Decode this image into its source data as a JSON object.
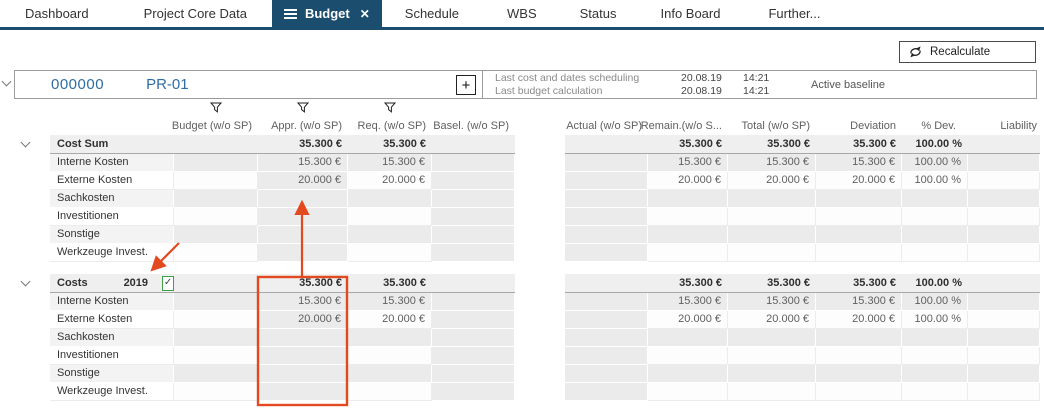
{
  "tabbar": {
    "tabs": [
      {
        "label": "Dashboard",
        "active": false
      },
      {
        "label": "Project Core Data",
        "active": false
      },
      {
        "label": "Budget",
        "active": true
      },
      {
        "label": "Schedule",
        "active": false
      },
      {
        "label": "WBS",
        "active": false
      },
      {
        "label": "Status",
        "active": false
      },
      {
        "label": "Info Board",
        "active": false
      },
      {
        "label": "Further...",
        "active": false
      }
    ]
  },
  "toolbar": {
    "recalculate_label": "Recalculate"
  },
  "project": {
    "number": "000000",
    "code": "PR-01",
    "add_button": "+",
    "info_rows": [
      {
        "label": "Last cost and dates scheduling",
        "date": "20.08.19",
        "time": "14:21"
      },
      {
        "label": "Last budget calculation",
        "date": "20.08.19",
        "time": "14:21"
      }
    ],
    "baseline": "Active baseline"
  },
  "columns": {
    "left": [
      "Budget (w/o SP)",
      "Appr. (w/o SP)",
      "Req. (w/o SP)",
      "Basel. (w/o SP)"
    ],
    "right": [
      "Actual (w/o SP)",
      "Remain.(w/o S...",
      "Total (w/o SP)",
      "Deviation",
      "% Dev.",
      "Liability"
    ],
    "filtered": [
      "Budget (w/o SP)",
      "Appr. (w/o SP)",
      "Req. (w/o SP)"
    ]
  },
  "sections": [
    {
      "title": "Cost Sum",
      "year": "",
      "checkbox": false,
      "checkbox_mark": "",
      "totals": {
        "budget": "",
        "appr": "35.300 €",
        "req": "35.300 €",
        "basel": "",
        "actual": "",
        "remain": "35.300 €",
        "total": "35.300 €",
        "deviation": "35.300 €",
        "pdev": "100.00 %",
        "liability": ""
      },
      "rows": [
        {
          "label": "Interne Kosten",
          "budget": "",
          "appr": "15.300 €",
          "req": "15.300 €",
          "basel": "",
          "actual": "",
          "remain": "15.300 €",
          "total": "15.300 €",
          "deviation": "15.300 €",
          "pdev": "100.00 %",
          "liability": ""
        },
        {
          "label": "Externe Kosten",
          "budget": "",
          "appr": "20.000 €",
          "req": "20.000 €",
          "basel": "",
          "actual": "",
          "remain": "20.000 €",
          "total": "20.000 €",
          "deviation": "20.000 €",
          "pdev": "100.00 %",
          "liability": ""
        },
        {
          "label": "Sachkosten"
        },
        {
          "label": "Investitionen"
        },
        {
          "label": "Sonstige"
        },
        {
          "label": "Werkzeuge Invest."
        }
      ]
    },
    {
      "title": "Costs",
      "year": "2019",
      "checkbox": true,
      "checkbox_mark": "✓",
      "totals": {
        "budget": "",
        "appr": "35.300 €",
        "req": "35.300 €",
        "basel": "",
        "actual": "",
        "remain": "35.300 €",
        "total": "35.300 €",
        "deviation": "35.300 €",
        "pdev": "100.00 %",
        "liability": ""
      },
      "rows": [
        {
          "label": "Interne Kosten",
          "budget": "",
          "appr": "15.300 €",
          "req": "15.300 €",
          "basel": "",
          "actual": "",
          "remain": "15.300 €",
          "total": "15.300 €",
          "deviation": "15.300 €",
          "pdev": "100.00 %",
          "liability": ""
        },
        {
          "label": "Externe Kosten",
          "budget": "",
          "appr": "20.000 €",
          "req": "20.000 €",
          "basel": "",
          "actual": "",
          "remain": "20.000 €",
          "total": "20.000 €",
          "deviation": "20.000 €",
          "pdev": "100.00 %",
          "liability": ""
        },
        {
          "label": "Sachkosten"
        },
        {
          "label": "Investitionen"
        },
        {
          "label": "Sonstige"
        },
        {
          "label": "Werkzeuge Invest."
        }
      ]
    }
  ],
  "colors": {
    "tab_active_bg": "#1B4D6E",
    "project_link_blue": "#2E6DA4",
    "checkbox_green": "#3FA047",
    "annotation_red": "#E3491E"
  }
}
